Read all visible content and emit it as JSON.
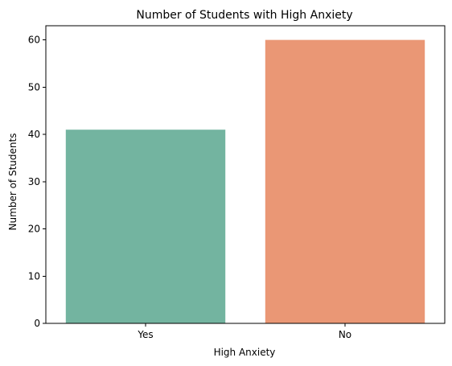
{
  "chart_data": {
    "type": "bar",
    "title": "Number of Students with High Anxiety",
    "xlabel": "High Anxiety",
    "ylabel": "Number of Students",
    "categories": [
      "Yes",
      "No"
    ],
    "values": [
      41,
      60
    ],
    "colors": [
      "#73b4a0",
      "#ea9775"
    ],
    "ylim": [
      0,
      63
    ],
    "yticks": [
      0,
      10,
      20,
      30,
      40,
      50,
      60
    ],
    "grid": false,
    "legend": "none"
  }
}
